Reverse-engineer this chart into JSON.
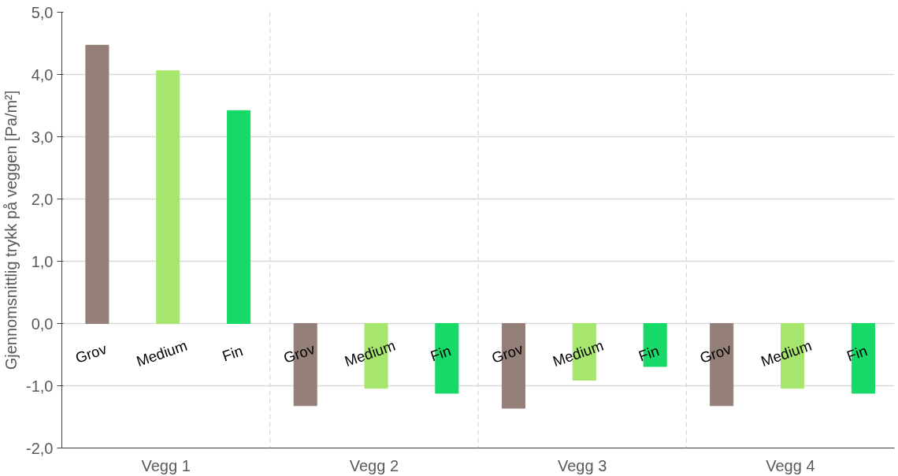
{
  "chart_data": {
    "type": "bar",
    "ylabel": "Gjennomsnittlig trykk på veggen [Pa/m²]",
    "categories": [
      "Vegg 1",
      "Vegg 2",
      "Vegg 3",
      "Vegg 4"
    ],
    "series": [
      {
        "name": "Grov",
        "color": "#948079",
        "values": [
          4.47,
          -1.32,
          -1.36,
          -1.32
        ]
      },
      {
        "name": "Medium",
        "color": "#a6e66e",
        "values": [
          4.06,
          -1.04,
          -0.91,
          -1.04
        ]
      },
      {
        "name": "Fin",
        "color": "#17d967",
        "values": [
          3.42,
          -1.12,
          -0.69,
          -1.12
        ]
      }
    ],
    "ylim": [
      -2,
      5
    ],
    "yticks": [
      {
        "value": -2,
        "label": "-2,0"
      },
      {
        "value": -1,
        "label": "-1,0"
      },
      {
        "value": 0,
        "label": "0,0"
      },
      {
        "value": 1,
        "label": "1,0"
      },
      {
        "value": 2,
        "label": "2,0"
      },
      {
        "value": 3,
        "label": "3,0"
      },
      {
        "value": 4,
        "label": "4,0"
      },
      {
        "value": 5,
        "label": "5,0"
      }
    ],
    "grid": "y"
  }
}
